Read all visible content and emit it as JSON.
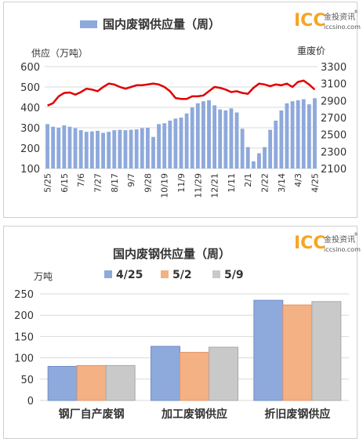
{
  "logo": {
    "mark": "ICC",
    "cn": "金投资讯",
    "site": "iccsino.com",
    "reg": "®"
  },
  "colors": {
    "bar": "#8EA9DB",
    "line": "#E00000",
    "c1": "#8EA9DB",
    "c2": "#F4B183",
    "c3": "#C9C9C9",
    "logo": "#F5A623"
  },
  "chart_data": [
    {
      "type": "bar+line",
      "title": "国内废钢供应量（周）",
      "legend": [
        "国内废钢供应量（周）"
      ],
      "ylabel_left": "供应（万吨）",
      "ylabel_right": "重废价",
      "ylim_left": [
        100,
        600
      ],
      "yticks_left": [
        100,
        200,
        300,
        400,
        500,
        600
      ],
      "ylim_right": [
        2100,
        3300
      ],
      "yticks_right": [
        2100,
        2300,
        2500,
        2700,
        2900,
        3100,
        3300
      ],
      "xtick_labels": [
        "5/25",
        "6/15",
        "7/6",
        "7/27",
        "8/17",
        "9/7",
        "9/28",
        "10/19",
        "11/9",
        "11/29",
        "12/21",
        "1/11",
        "2/1",
        "2/22",
        "3/14",
        "4/3",
        "4/25"
      ],
      "xtick_index_step": 3,
      "series": [
        {
          "name": "国内废钢供应量（周）",
          "kind": "bar",
          "values": [
            318,
            305,
            300,
            312,
            305,
            298,
            288,
            280,
            282,
            285,
            275,
            280,
            288,
            290,
            288,
            290,
            292,
            298,
            300,
            255,
            318,
            322,
            335,
            345,
            350,
            370,
            400,
            420,
            430,
            435,
            410,
            390,
            385,
            395,
            375,
            295,
            205,
            135,
            175,
            205,
            290,
            335,
            385,
            420,
            430,
            435,
            440,
            415,
            445
          ]
        },
        {
          "name": "重废价",
          "kind": "line",
          "values": [
            2840,
            2870,
            2950,
            2990,
            2995,
            2970,
            3000,
            3040,
            3030,
            3010,
            3060,
            3100,
            3090,
            3060,
            3040,
            3060,
            3080,
            3080,
            3090,
            3100,
            3090,
            3060,
            3010,
            2930,
            2920,
            2920,
            2950,
            2950,
            2960,
            3010,
            3060,
            3050,
            3030,
            3000,
            3010,
            2990,
            2980,
            3050,
            3100,
            3090,
            3070,
            3090,
            3080,
            3100,
            3060,
            3120,
            3135,
            3090,
            3030
          ]
        }
      ]
    },
    {
      "type": "bar",
      "title": "国内废钢供应量（周）",
      "ylabel": "万吨",
      "ylim": [
        0,
        250
      ],
      "yticks": [
        0,
        50,
        100,
        150,
        200,
        250
      ],
      "categories": [
        "钢厂自产废钢",
        "加工废钢供应",
        "折旧废钢供应"
      ],
      "series": [
        {
          "name": "4/25",
          "values": [
            80,
            127,
            235
          ]
        },
        {
          "name": "5/2",
          "values": [
            82,
            113,
            224
          ]
        },
        {
          "name": "5/9",
          "values": [
            82,
            125,
            232
          ]
        }
      ]
    }
  ]
}
